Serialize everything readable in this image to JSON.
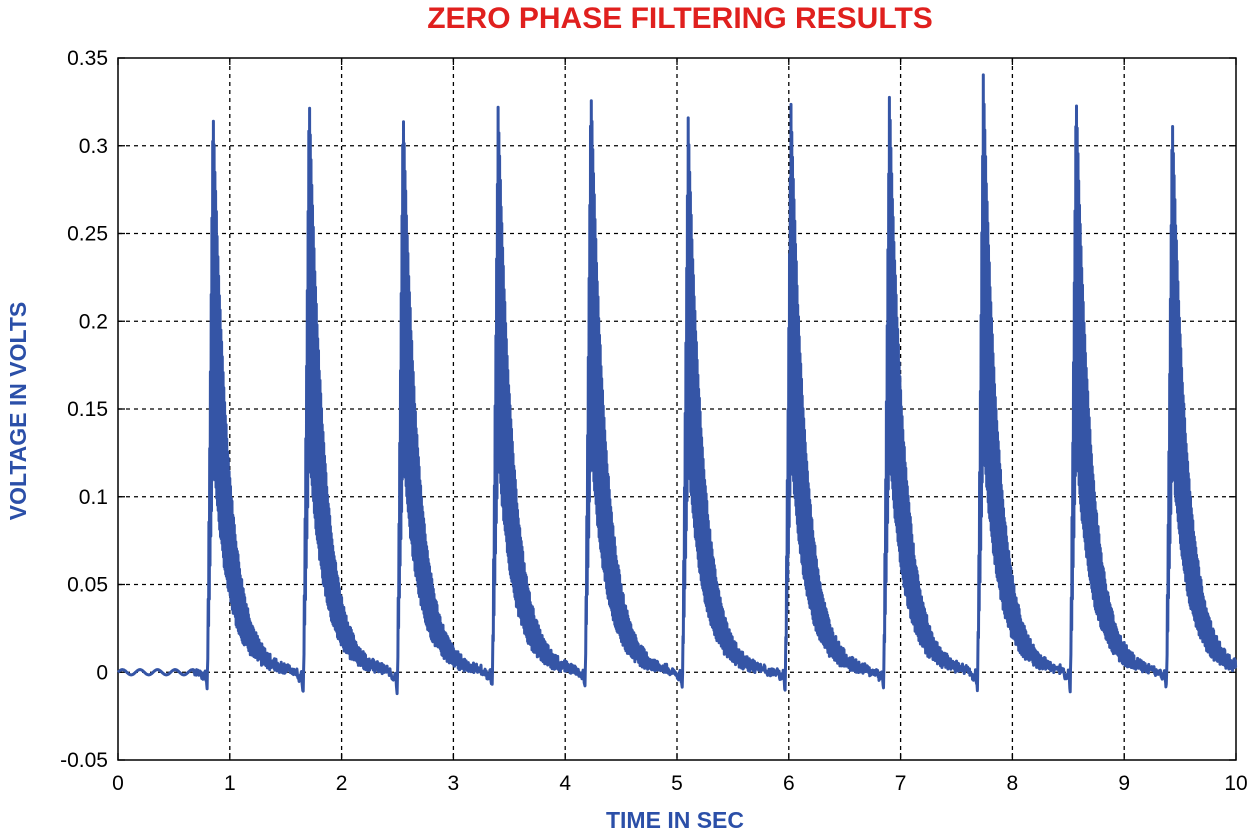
{
  "chart_data": {
    "type": "line",
    "title": "ZERO PHASE FILTERING RESULTS",
    "xlabel": "TIME IN SEC",
    "ylabel": "VOLTAGE IN VOLTS",
    "xlim": [
      0,
      10
    ],
    "ylim": [
      -0.05,
      0.35
    ],
    "xticks": [
      0,
      1,
      2,
      3,
      4,
      5,
      6,
      7,
      8,
      9,
      10
    ],
    "yticks": [
      -0.05,
      0,
      0.05,
      0.1,
      0.15,
      0.2,
      0.25,
      0.3,
      0.35
    ],
    "ytick_labels": [
      "-0.05",
      "0",
      "0.05",
      "0.1",
      "0.15",
      "0.2",
      "0.25",
      "0.3",
      "0.35"
    ],
    "grid": true,
    "line_color": "#3555a6",
    "title_color": "#e0201e",
    "label_color": "#2b4fa8",
    "series": [
      {
        "baseline": 0.0,
        "beats": [
          {
            "t": 0.8,
            "peak": 0.323,
            "dip": -0.01
          },
          {
            "t": 1.66,
            "peak": 0.329,
            "dip": -0.015
          },
          {
            "t": 2.5,
            "peak": 0.323,
            "dip": -0.013
          },
          {
            "t": 3.35,
            "peak": 0.322,
            "dip": -0.01
          },
          {
            "t": 4.18,
            "peak": 0.335,
            "dip": -0.01
          },
          {
            "t": 5.05,
            "peak": 0.315,
            "dip": -0.012
          },
          {
            "t": 5.97,
            "peak": 0.324,
            "dip": -0.012
          },
          {
            "t": 6.85,
            "peak": 0.328,
            "dip": -0.012
          },
          {
            "t": 7.69,
            "peak": 0.339,
            "dip": -0.013
          },
          {
            "t": 8.52,
            "peak": 0.331,
            "dip": -0.011
          },
          {
            "t": 9.38,
            "peak": 0.317,
            "dip": -0.01
          }
        ]
      }
    ]
  }
}
